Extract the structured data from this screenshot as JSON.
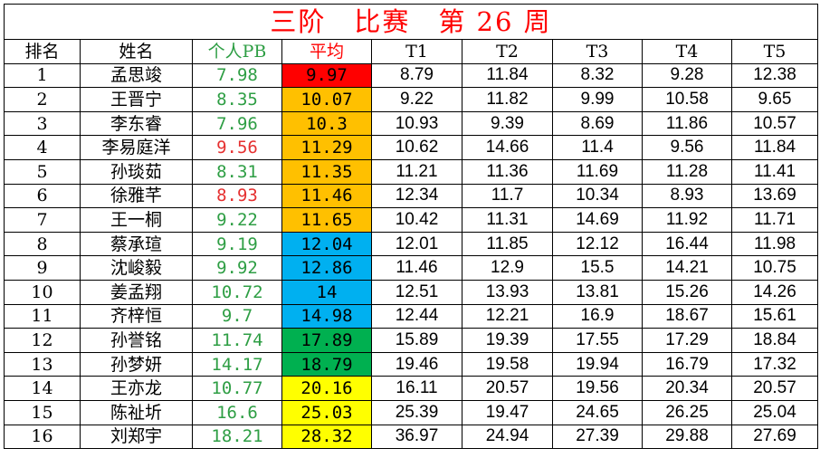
{
  "title": "三阶　比赛　第 26 周",
  "headers": [
    "排名",
    "姓名",
    "个人PB",
    "平均",
    "T1",
    "T2",
    "T3",
    "T4",
    "T5"
  ],
  "colors": {
    "pb_green": "#2e9e44",
    "pb_red": "#e53030",
    "avg_red": "#ff0000",
    "avg_orange": "#ffc000",
    "avg_blue": "#00b0f0",
    "avg_green": "#00b050",
    "avg_yellow": "#ffff00"
  },
  "rows": [
    {
      "rank": "1",
      "name": "孟思竣",
      "pb": "7.98",
      "pb_color": "green",
      "avg": "9.97",
      "avg_color": "red",
      "t": [
        "8.79",
        "11.84",
        "8.32",
        "9.28",
        "12.38"
      ]
    },
    {
      "rank": "2",
      "name": "王晋宁",
      "pb": "8.35",
      "pb_color": "green",
      "avg": "10.07",
      "avg_color": "orange",
      "t": [
        "9.22",
        "11.82",
        "9.99",
        "10.58",
        "9.65"
      ]
    },
    {
      "rank": "3",
      "name": "李东睿",
      "pb": "7.96",
      "pb_color": "green",
      "avg": "10.3",
      "avg_color": "orange",
      "t": [
        "10.93",
        "9.39",
        "8.69",
        "11.86",
        "10.57"
      ]
    },
    {
      "rank": "4",
      "name": "李易庭洋",
      "pb": "9.56",
      "pb_color": "red",
      "avg": "11.29",
      "avg_color": "orange",
      "t": [
        "10.62",
        "14.66",
        "11.4",
        "9.56",
        "11.84"
      ]
    },
    {
      "rank": "5",
      "name": "孙琰茹",
      "pb": "8.31",
      "pb_color": "green",
      "avg": "11.35",
      "avg_color": "orange",
      "t": [
        "11.21",
        "11.36",
        "11.69",
        "11.28",
        "11.41"
      ]
    },
    {
      "rank": "6",
      "name": "徐雅芊",
      "pb": "8.93",
      "pb_color": "red",
      "avg": "11.46",
      "avg_color": "orange",
      "t": [
        "12.34",
        "11.7",
        "10.34",
        "8.93",
        "13.69"
      ]
    },
    {
      "rank": "7",
      "name": "王一桐",
      "pb": "9.22",
      "pb_color": "green",
      "avg": "11.65",
      "avg_color": "orange",
      "t": [
        "10.42",
        "11.31",
        "14.69",
        "11.92",
        "11.71"
      ]
    },
    {
      "rank": "8",
      "name": "蔡承瑄",
      "pb": "9.19",
      "pb_color": "green",
      "avg": "12.04",
      "avg_color": "blue",
      "t": [
        "12.01",
        "11.85",
        "12.12",
        "16.44",
        "11.98"
      ]
    },
    {
      "rank": "9",
      "name": "沈峻毅",
      "pb": "9.92",
      "pb_color": "green",
      "avg": "12.86",
      "avg_color": "blue",
      "t": [
        "11.46",
        "12.9",
        "15.5",
        "14.21",
        "10.75"
      ]
    },
    {
      "rank": "10",
      "name": "姜孟翔",
      "pb": "10.72",
      "pb_color": "green",
      "avg": "14",
      "avg_color": "blue",
      "t": [
        "12.51",
        "13.93",
        "13.81",
        "15.26",
        "14.26"
      ]
    },
    {
      "rank": "11",
      "name": "齐梓恒",
      "pb": "9.7",
      "pb_color": "green",
      "avg": "14.98",
      "avg_color": "blue",
      "t": [
        "12.44",
        "12.21",
        "16.9",
        "18.67",
        "15.61"
      ]
    },
    {
      "rank": "12",
      "name": "孙誉铭",
      "pb": "11.74",
      "pb_color": "green",
      "avg": "17.89",
      "avg_color": "green",
      "t": [
        "15.89",
        "19.39",
        "17.55",
        "17.29",
        "18.84"
      ]
    },
    {
      "rank": "13",
      "name": "孙梦妍",
      "pb": "14.17",
      "pb_color": "green",
      "avg": "18.79",
      "avg_color": "green",
      "t": [
        "19.46",
        "19.58",
        "19.94",
        "16.79",
        "17.32"
      ]
    },
    {
      "rank": "14",
      "name": "王亦龙",
      "pb": "10.77",
      "pb_color": "green",
      "avg": "20.16",
      "avg_color": "yellow",
      "t": [
        "16.11",
        "20.57",
        "19.56",
        "20.34",
        "20.57"
      ]
    },
    {
      "rank": "15",
      "name": "陈祉圻",
      "pb": "16.6",
      "pb_color": "green",
      "avg": "25.03",
      "avg_color": "yellow",
      "t": [
        "25.39",
        "19.47",
        "24.65",
        "26.25",
        "25.04"
      ]
    },
    {
      "rank": "16",
      "name": "刘郑宇",
      "pb": "18.21",
      "pb_color": "green",
      "avg": "28.32",
      "avg_color": "yellow",
      "t": [
        "36.97",
        "24.94",
        "27.39",
        "29.88",
        "27.69"
      ]
    }
  ]
}
